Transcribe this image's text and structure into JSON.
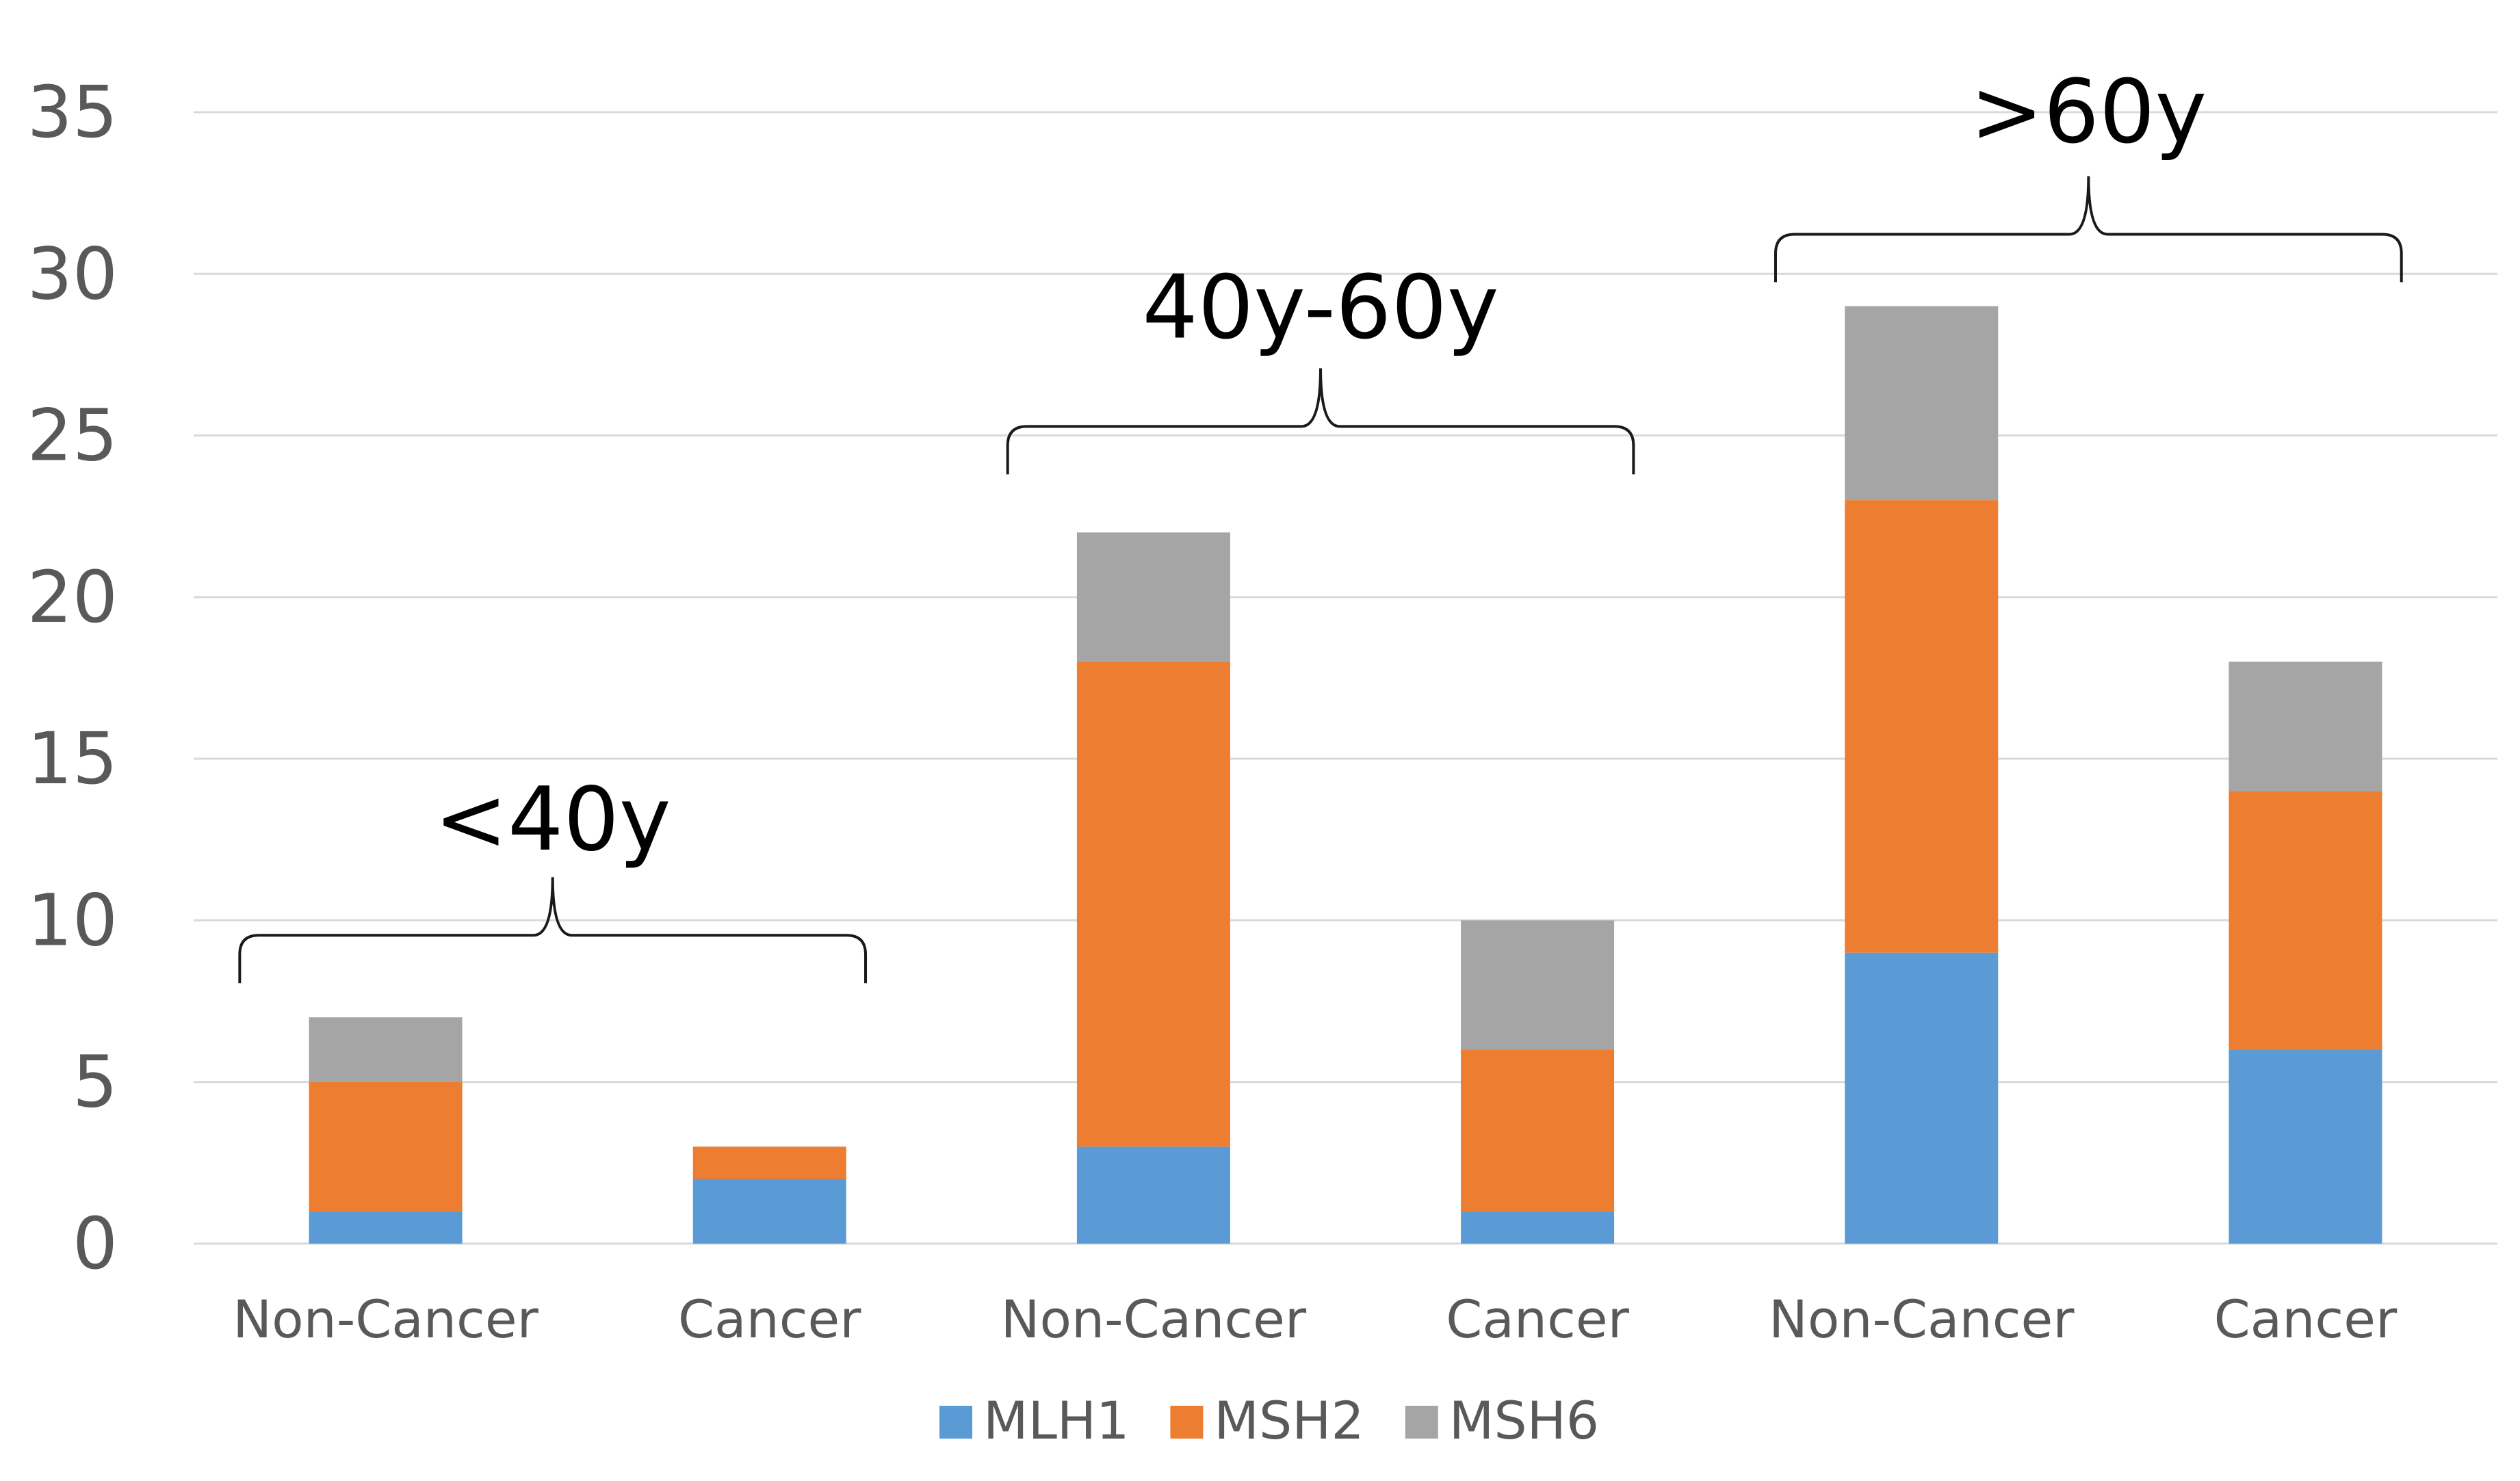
{
  "chart_data": {
    "type": "bar",
    "stacked": true,
    "title": "",
    "xlabel": "",
    "ylabel": "",
    "ylim": [
      0,
      35
    ],
    "yticks": [
      0,
      5,
      10,
      15,
      20,
      25,
      30,
      35
    ],
    "grid": true,
    "legend_position": "bottom",
    "categories": [
      "Non-Cancer",
      "Cancer",
      "Non-Cancer",
      "Cancer",
      "Non-Cancer",
      "Cancer"
    ],
    "series": [
      {
        "name": "MLH1",
        "color": "#5b9bd5",
        "values": [
          1,
          2,
          3,
          1,
          9,
          6
        ]
      },
      {
        "name": "MSH2",
        "color": "#ed7d31",
        "values": [
          4,
          1,
          15,
          5,
          14,
          8
        ]
      },
      {
        "name": "MSH6",
        "color": "#a5a5a5",
        "values": [
          2,
          0,
          4,
          4,
          6,
          4
        ]
      }
    ],
    "groups": [
      {
        "label": "<40y",
        "category_indices": [
          0,
          1
        ]
      },
      {
        "label": "40y-60y",
        "category_indices": [
          2,
          3
        ]
      },
      {
        "label": ">60y",
        "category_indices": [
          4,
          5
        ]
      }
    ]
  }
}
